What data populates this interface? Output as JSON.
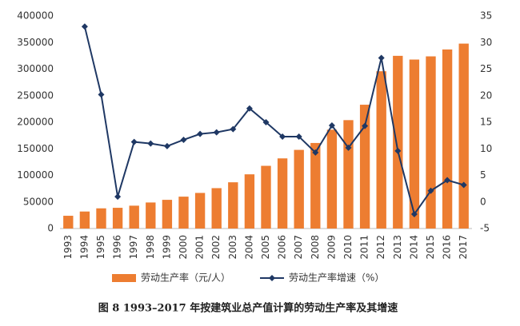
{
  "chart_data": {
    "type": "bar-line",
    "title": "图 8   1993–2017 年按建筑业总产值计算的劳动生产率及其增速",
    "categories": [
      "1993",
      "1994",
      "1995",
      "1996",
      "1997",
      "1998",
      "1999",
      "2000",
      "2001",
      "2002",
      "2003",
      "2004",
      "2005",
      "2006",
      "2007",
      "2008",
      "2009",
      "2010",
      "2011",
      "2012",
      "2013",
      "2014",
      "2015",
      "2016",
      "2017"
    ],
    "series": [
      {
        "name": "劳动生产率（元/人）",
        "type": "bar",
        "color": "#ed7d31",
        "values": [
          24000,
          32000,
          38000,
          39000,
          43000,
          49000,
          54000,
          60000,
          67000,
          76000,
          87000,
          102000,
          118000,
          132000,
          148000,
          161000,
          186000,
          204000,
          233000,
          296000,
          325000,
          318000,
          324000,
          337000,
          348000
        ]
      },
      {
        "name": "劳动生产率增速（%）",
        "type": "line",
        "axis": "y2",
        "color": "#1f3864",
        "values": [
          null,
          33,
          20.2,
          1.0,
          11.3,
          11.0,
          10.5,
          11.7,
          12.8,
          13.1,
          13.7,
          17.6,
          15.0,
          12.3,
          12.3,
          9.3,
          14.4,
          10.2,
          14.3,
          27.1,
          9.6,
          -2.3,
          2.1,
          4.1,
          3.2
        ]
      }
    ],
    "ylim": [
      0,
      400000
    ],
    "yticks": [
      0,
      50000,
      100000,
      150000,
      200000,
      250000,
      300000,
      350000,
      400000
    ],
    "y2lim": [
      -5,
      35
    ],
    "y2ticks": [
      -5,
      0,
      5,
      10,
      15,
      20,
      25,
      30,
      35
    ]
  }
}
